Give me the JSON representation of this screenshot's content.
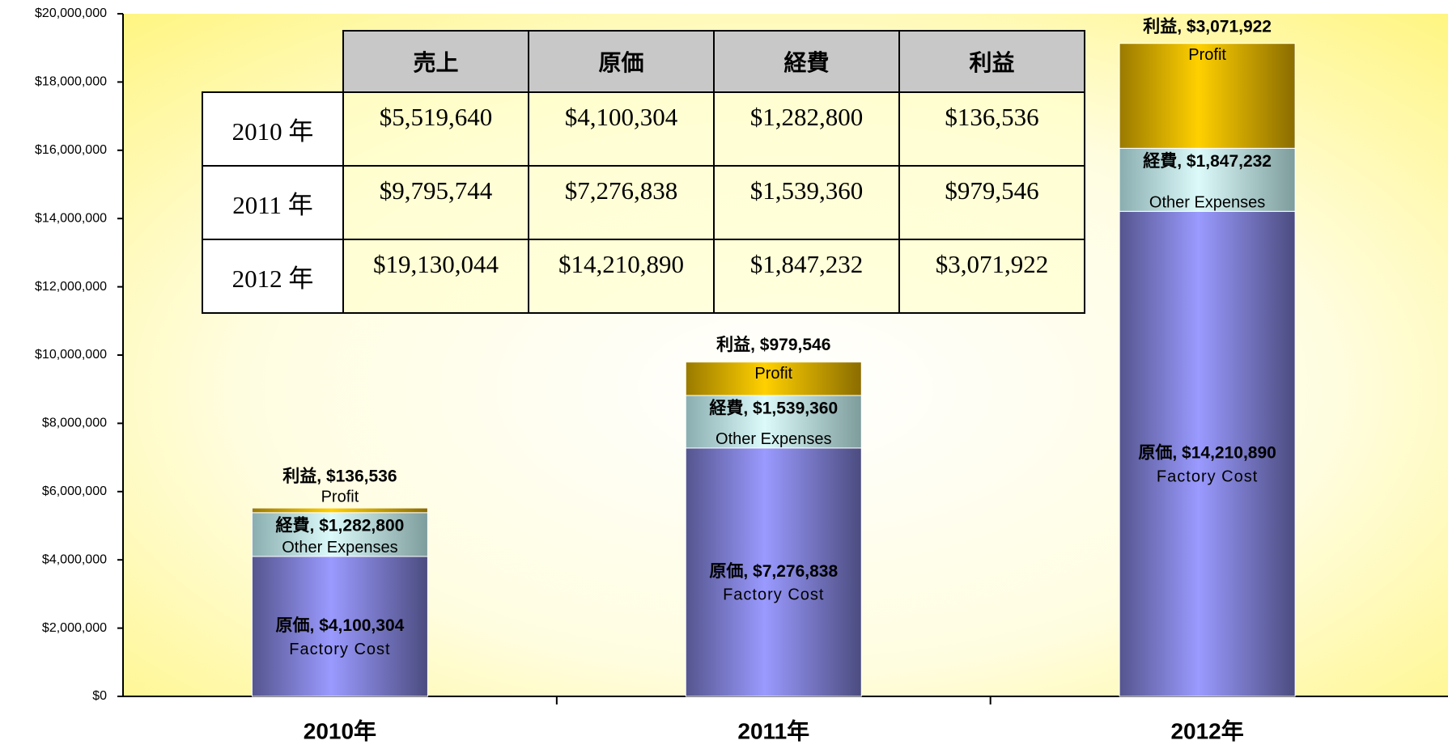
{
  "chart_data": {
    "type": "stacked_bar",
    "categories": [
      "2010年",
      "2011年",
      "2012年"
    ],
    "series": [
      {
        "name": "Factory Cost",
        "color": "#9a9aff",
        "values": [
          4100304,
          7276838,
          14210890
        ],
        "value_labels": [
          "原価, $4,100,304",
          "原価, $7,276,838",
          "原価, $14,210,890"
        ]
      },
      {
        "name": "Other Expenses",
        "color": "#dcfafa",
        "values": [
          1282800,
          1539360,
          1847232
        ],
        "value_labels": [
          "経費, $1,282,800",
          "経費, $1,539,360",
          "経費, $1,847,232"
        ]
      },
      {
        "name": "Profit",
        "color": "#ffd000",
        "values": [
          136536,
          979546,
          3071922
        ],
        "value_labels": [
          "利益, $136,536",
          "利益, $979,546",
          "利益, $3,071,922"
        ]
      }
    ],
    "ylim": [
      0,
      20000000
    ],
    "yticks": [
      {
        "value": 0,
        "label": "$0"
      },
      {
        "value": 2000000,
        "label": "$2,000,000"
      },
      {
        "value": 4000000,
        "label": "$4,000,000"
      },
      {
        "value": 6000000,
        "label": "$6,000,000"
      },
      {
        "value": 8000000,
        "label": "$8,000,000"
      },
      {
        "value": 10000000,
        "label": "$10,000,000"
      },
      {
        "value": 12000000,
        "label": "$12,000,000"
      },
      {
        "value": 14000000,
        "label": "$14,000,000"
      },
      {
        "value": 16000000,
        "label": "$16,000,000"
      },
      {
        "value": 18000000,
        "label": "$18,000,000"
      },
      {
        "value": 20000000,
        "label": "$20,000,000"
      }
    ],
    "grid": false
  },
  "table": {
    "columns": [
      "売上",
      "原価",
      "経費",
      "利益"
    ],
    "rows": [
      {
        "label": "2010 年",
        "cells": [
          "$5,519,640",
          "$4,100,304",
          "$1,282,800",
          "$136,536"
        ]
      },
      {
        "label": "2011 年",
        "cells": [
          "$9,795,744",
          "$7,276,838",
          "$1,539,360",
          "$979,546"
        ]
      },
      {
        "label": "2012 年",
        "cells": [
          "$19,130,044",
          "$14,210,890",
          "$1,847,232",
          "$3,071,922"
        ]
      }
    ]
  }
}
